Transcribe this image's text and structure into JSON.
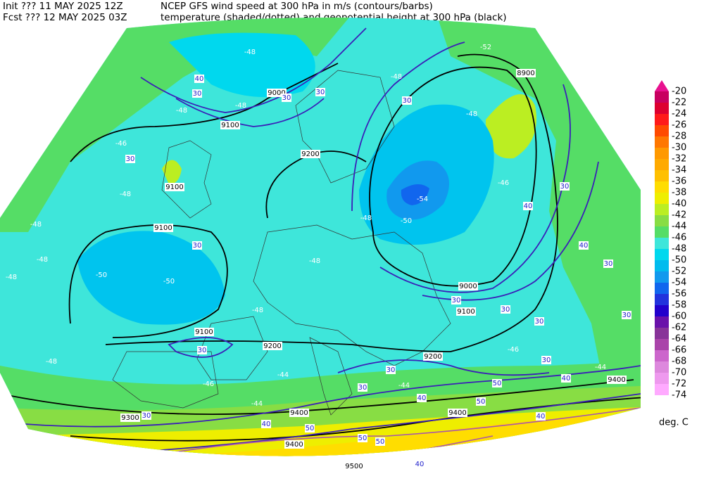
{
  "header": {
    "init": "Init  ??? 11 MAY 2025 12Z",
    "title_1": "NCEP GFS wind speed at 300 hPa in m/s (contours/barbs)",
    "forecast": "Fcst ??? 12 MAY 2025 03Z",
    "title_2": "temperature (shaded/dotted) and geopotential height at 300 hPa (black)"
  },
  "colorbar": {
    "levels": [
      -20,
      -22,
      -24,
      -26,
      -28,
      -30,
      -32,
      -34,
      -36,
      -38,
      -40,
      -42,
      -44,
      -46,
      -48,
      -50,
      -52,
      -54,
      -56,
      -58,
      -60,
      -62,
      -64,
      -66,
      -68,
      -70,
      -72,
      -74
    ],
    "colors": [
      "#e8118f",
      "#c80060",
      "#dd0030",
      "#ff1a1a",
      "#ff4a00",
      "#ff7700",
      "#ff9900",
      "#ffaa00",
      "#ffc000",
      "#ffdd00",
      "#eeee00",
      "#bbee22",
      "#88dd44",
      "#55dd66",
      "#3ee6da",
      "#00d8ee",
      "#00bbee",
      "#1199ee",
      "#1166ee",
      "#2233dd",
      "#2200cc",
      "#6a11aa",
      "#883399",
      "#aa44aa",
      "#cc66cc",
      "#dd88dd",
      "#ee99ee",
      "#ffaaff"
    ],
    "unit": "deg. C"
  },
  "map_labels": {
    "heights": [
      8900,
      9000,
      9100,
      9200,
      9100,
      9100,
      9000,
      9100,
      9100,
      9200,
      9200,
      9300,
      9400,
      9400,
      9400,
      9500,
      9400
    ],
    "wind": [
      30,
      40,
      30,
      30,
      30,
      30,
      30,
      30,
      30,
      30,
      40,
      30,
      30,
      30,
      30,
      30,
      40,
      40,
      30,
      30,
      40,
      50,
      50,
      40,
      50,
      50,
      50,
      40,
      40,
      30
    ],
    "temperature": [
      -48,
      -48,
      -48,
      -48,
      -48,
      -48,
      -48,
      -50,
      -48,
      -48,
      -48,
      -46,
      -44,
      -44,
      -46,
      -46,
      -50,
      -48,
      -48,
      -52,
      -48,
      -44,
      -44,
      -54,
      -50,
      -46
    ]
  }
}
